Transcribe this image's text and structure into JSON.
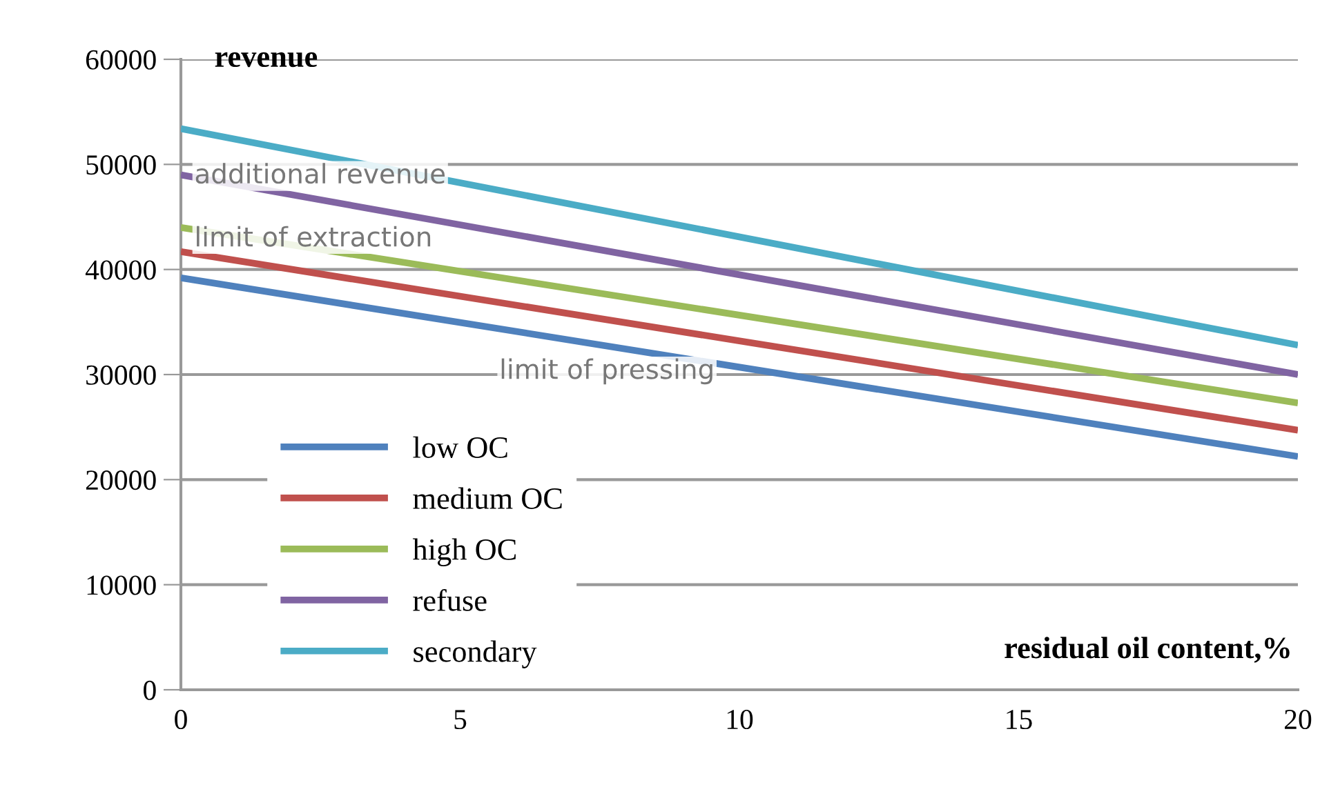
{
  "chart_data": {
    "type": "line",
    "ylabel": "revenue",
    "xlabel": "residual oil content,%",
    "x": [
      0,
      20
    ],
    "series": [
      {
        "name": "low OC",
        "color": "#4f81bd",
        "values": [
          39200,
          22200
        ]
      },
      {
        "name": "medium OC",
        "color": "#c0504d",
        "values": [
          41700,
          24700
        ]
      },
      {
        "name": "high OC",
        "color": "#9bbb59",
        "values": [
          44000,
          27300
        ]
      },
      {
        "name": "refuse",
        "color": "#8064a2",
        "values": [
          49000,
          30000
        ]
      },
      {
        "name": "secondary",
        "color": "#4bacc6",
        "values": [
          53400,
          32800
        ]
      }
    ],
    "annotations": [
      "additional revenue",
      "limit of extraction",
      "limit of pressing"
    ],
    "xlim": [
      0,
      20
    ],
    "xticks": [
      0,
      5,
      10,
      15,
      20
    ],
    "ylim": [
      0,
      60000
    ],
    "yticks": [
      0,
      10000,
      20000,
      30000,
      40000,
      50000,
      60000
    ],
    "grid": "y",
    "legend": "lower left",
    "marker": "none",
    "line_style": "solid"
  }
}
